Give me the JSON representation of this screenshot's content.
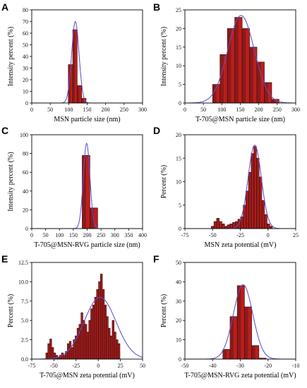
{
  "figure": {
    "bar_color": "#8b1a1a",
    "bar_highlight": "#e8231e",
    "bar_edge": "#3a1010",
    "fit_colors": [
      "#3b5bd6",
      "#b03ab8"
    ]
  },
  "chart_data": [
    {
      "panel": "A",
      "type": "bar",
      "xlabel": "MSN particle size (nm)",
      "ylabel": "Intensity percent (%)",
      "xlim": [
        0,
        300
      ],
      "ylim": [
        0,
        80
      ],
      "xticks": [
        0,
        50,
        100,
        150,
        200,
        250,
        300
      ],
      "yticks": [
        0,
        10,
        20,
        30,
        40,
        50,
        60,
        70,
        80
      ],
      "bin_width": 12,
      "x": [
        105,
        117,
        129,
        141
      ],
      "values": [
        33,
        63,
        15,
        4
      ],
      "fit": {
        "center": 118,
        "sigma": 10,
        "peak": 70
      }
    },
    {
      "panel": "B",
      "type": "bar",
      "xlabel": "T-705@MSN particle size (nm)",
      "ylabel": "Intensity percent (%)",
      "xlim": [
        0,
        300
      ],
      "ylim": [
        0,
        25
      ],
      "xticks": [
        0,
        50,
        100,
        150,
        200,
        250,
        300
      ],
      "yticks": [
        0,
        5,
        10,
        15,
        20,
        25
      ],
      "bin_width": 20,
      "x": [
        85,
        105,
        125,
        145,
        165,
        185,
        205,
        225,
        245
      ],
      "values": [
        5,
        13,
        20,
        23,
        20,
        15,
        11,
        5.5,
        1
      ],
      "fit": {
        "center": 152,
        "sigma": 36,
        "peak": 23.5
      }
    },
    {
      "panel": "C",
      "type": "bar",
      "xlabel": "T-705@MSN-RVG particle size (nm)",
      "ylabel": "Intensity percent (%)",
      "xlim": [
        0,
        400
      ],
      "ylim": [
        0,
        100
      ],
      "xticks": [
        0,
        50,
        100,
        150,
        200,
        250,
        300,
        350,
        400
      ],
      "yticks": [
        0,
        20,
        40,
        60,
        80,
        100
      ],
      "bin_width": 28,
      "x": [
        196,
        224
      ],
      "values": [
        78,
        22
      ],
      "fit": {
        "center": 198,
        "sigma": 12,
        "peak": 91
      }
    },
    {
      "panel": "D",
      "type": "bar",
      "xlabel": "MSN zeta potential (mV)",
      "ylabel": "Percent (%)",
      "xlim": [
        -75,
        25
      ],
      "ylim": [
        0,
        20
      ],
      "xticks": [
        -75,
        -50,
        -25,
        0,
        25
      ],
      "yticks": [
        0,
        5,
        10,
        15,
        20
      ],
      "bin_width": 2.4,
      "x": [
        -50,
        -47.6,
        -45.2,
        -42.8,
        -40.4,
        -38,
        -35.6,
        -33.2,
        -30.8,
        -28.4,
        -26,
        -23.6,
        -21.2,
        -18.8,
        -16.4,
        -14,
        -11.6,
        -9.2,
        -6.8,
        -4.4,
        -2,
        0.4,
        2.8
      ],
      "values": [
        0.5,
        1.5,
        2.2,
        1.5,
        1.0,
        0.5,
        0.8,
        1.0,
        1.3,
        1.5,
        2.0,
        2.5,
        5.0,
        8.0,
        12.0,
        16.0,
        17.5,
        15.0,
        11.0,
        6.0,
        3.0,
        1.0,
        0.5
      ],
      "fit": {
        "center": -12,
        "sigma": 6,
        "peak": 17.8
      }
    },
    {
      "panel": "E",
      "type": "bar",
      "xlabel": "T-705@MSN zeta potential (mV)",
      "ylabel": "Percent (%)",
      "xlim": [
        -75,
        50
      ],
      "ylim": [
        0,
        12.5
      ],
      "xticks": [
        -75,
        -50,
        -25,
        0,
        25,
        50
      ],
      "yticks": [
        0,
        2.5,
        5,
        7.5,
        10,
        12.5
      ],
      "ytick_labels": [
        "0.0",
        "2.5",
        "5.0",
        "7.5",
        "10.0",
        "12.5"
      ],
      "bin_width": 2.2,
      "x": [
        -58,
        -55.8,
        -53.6,
        -51.4,
        -49.2,
        -47,
        -44.8,
        -42.6,
        -40.4,
        -38.2,
        -36,
        -33.8,
        -31.6,
        -29.4,
        -27.2,
        -25,
        -22.8,
        -20.6,
        -18.4,
        -16.2,
        -14,
        -11.8,
        -9.6,
        -7.4,
        -5.2,
        -3,
        -0.8,
        1.4,
        3.6,
        5.8,
        8,
        10.2,
        12.4,
        14.6,
        16.8,
        19,
        21.2,
        23.4
      ],
      "values": [
        0.8,
        2.0,
        2.6,
        1.5,
        0.8,
        0.5,
        0.3,
        0.5,
        0.8,
        0.5,
        1.0,
        2.0,
        2.3,
        1.5,
        2.5,
        3.0,
        4.0,
        4.5,
        6.0,
        5.0,
        4.5,
        3.5,
        5.0,
        6.5,
        7.0,
        8.0,
        9.0,
        10.0,
        11.0,
        9.0,
        7.0,
        5.5,
        4.0,
        3.0,
        5.0,
        3.5,
        2.5,
        2.0
      ],
      "fit": {
        "center": 2,
        "sigma": 18,
        "peak": 8
      }
    },
    {
      "panel": "F",
      "type": "bar",
      "xlabel": "T-705@MSN-RVG zeta potential (mV)",
      "ylabel": "Percent (%)",
      "xlim": [
        -50,
        -10
      ],
      "ylim": [
        0,
        50
      ],
      "xticks": [
        -50,
        -40,
        -30,
        -20,
        -10
      ],
      "yticks": [
        0,
        10,
        20,
        30,
        40,
        50
      ],
      "bin_width": 2.6,
      "x": [
        -35,
        -32.4,
        -29.8,
        -27.2,
        -24.6,
        -22
      ],
      "values": [
        5,
        22,
        38,
        27,
        7,
        0.5
      ],
      "fit": {
        "center": -29,
        "sigma": 3.5,
        "peak": 38.5
      }
    }
  ]
}
